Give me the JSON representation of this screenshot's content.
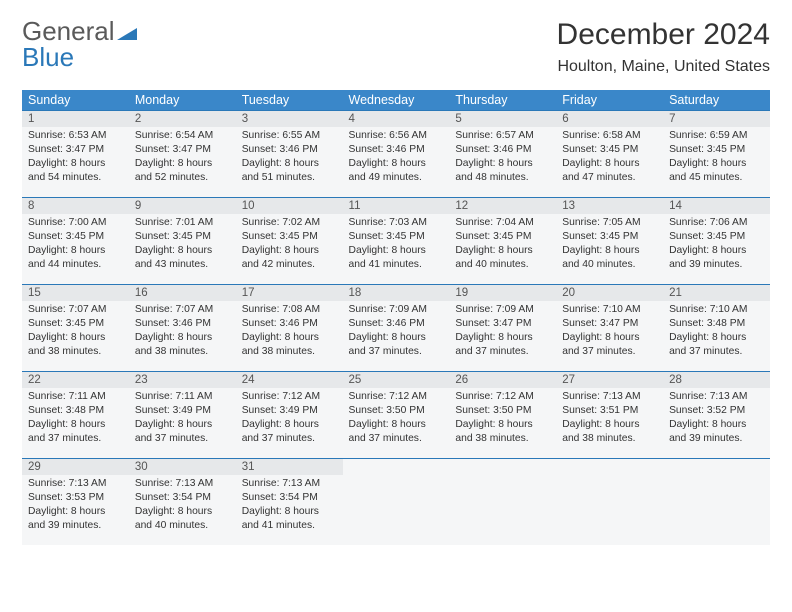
{
  "logo": {
    "general": "General",
    "blue": "Blue"
  },
  "title": "December 2024",
  "location": "Houlton, Maine, United States",
  "colors": {
    "header_bg": "#3a87c9",
    "header_fg": "#ffffff",
    "daynum_bg": "#e6e8ea",
    "body_bg": "#f5f6f7",
    "rule": "#2a78b8",
    "logo_blue": "#2a78b8"
  },
  "weekdays": [
    "Sunday",
    "Monday",
    "Tuesday",
    "Wednesday",
    "Thursday",
    "Friday",
    "Saturday"
  ],
  "weeks": [
    [
      {
        "n": "1",
        "sr": "Sunrise: 6:53 AM",
        "ss": "Sunset: 3:47 PM",
        "dl": "Daylight: 8 hours and 54 minutes."
      },
      {
        "n": "2",
        "sr": "Sunrise: 6:54 AM",
        "ss": "Sunset: 3:47 PM",
        "dl": "Daylight: 8 hours and 52 minutes."
      },
      {
        "n": "3",
        "sr": "Sunrise: 6:55 AM",
        "ss": "Sunset: 3:46 PM",
        "dl": "Daylight: 8 hours and 51 minutes."
      },
      {
        "n": "4",
        "sr": "Sunrise: 6:56 AM",
        "ss": "Sunset: 3:46 PM",
        "dl": "Daylight: 8 hours and 49 minutes."
      },
      {
        "n": "5",
        "sr": "Sunrise: 6:57 AM",
        "ss": "Sunset: 3:46 PM",
        "dl": "Daylight: 8 hours and 48 minutes."
      },
      {
        "n": "6",
        "sr": "Sunrise: 6:58 AM",
        "ss": "Sunset: 3:45 PM",
        "dl": "Daylight: 8 hours and 47 minutes."
      },
      {
        "n": "7",
        "sr": "Sunrise: 6:59 AM",
        "ss": "Sunset: 3:45 PM",
        "dl": "Daylight: 8 hours and 45 minutes."
      }
    ],
    [
      {
        "n": "8",
        "sr": "Sunrise: 7:00 AM",
        "ss": "Sunset: 3:45 PM",
        "dl": "Daylight: 8 hours and 44 minutes."
      },
      {
        "n": "9",
        "sr": "Sunrise: 7:01 AM",
        "ss": "Sunset: 3:45 PM",
        "dl": "Daylight: 8 hours and 43 minutes."
      },
      {
        "n": "10",
        "sr": "Sunrise: 7:02 AM",
        "ss": "Sunset: 3:45 PM",
        "dl": "Daylight: 8 hours and 42 minutes."
      },
      {
        "n": "11",
        "sr": "Sunrise: 7:03 AM",
        "ss": "Sunset: 3:45 PM",
        "dl": "Daylight: 8 hours and 41 minutes."
      },
      {
        "n": "12",
        "sr": "Sunrise: 7:04 AM",
        "ss": "Sunset: 3:45 PM",
        "dl": "Daylight: 8 hours and 40 minutes."
      },
      {
        "n": "13",
        "sr": "Sunrise: 7:05 AM",
        "ss": "Sunset: 3:45 PM",
        "dl": "Daylight: 8 hours and 40 minutes."
      },
      {
        "n": "14",
        "sr": "Sunrise: 7:06 AM",
        "ss": "Sunset: 3:45 PM",
        "dl": "Daylight: 8 hours and 39 minutes."
      }
    ],
    [
      {
        "n": "15",
        "sr": "Sunrise: 7:07 AM",
        "ss": "Sunset: 3:45 PM",
        "dl": "Daylight: 8 hours and 38 minutes."
      },
      {
        "n": "16",
        "sr": "Sunrise: 7:07 AM",
        "ss": "Sunset: 3:46 PM",
        "dl": "Daylight: 8 hours and 38 minutes."
      },
      {
        "n": "17",
        "sr": "Sunrise: 7:08 AM",
        "ss": "Sunset: 3:46 PM",
        "dl": "Daylight: 8 hours and 38 minutes."
      },
      {
        "n": "18",
        "sr": "Sunrise: 7:09 AM",
        "ss": "Sunset: 3:46 PM",
        "dl": "Daylight: 8 hours and 37 minutes."
      },
      {
        "n": "19",
        "sr": "Sunrise: 7:09 AM",
        "ss": "Sunset: 3:47 PM",
        "dl": "Daylight: 8 hours and 37 minutes."
      },
      {
        "n": "20",
        "sr": "Sunrise: 7:10 AM",
        "ss": "Sunset: 3:47 PM",
        "dl": "Daylight: 8 hours and 37 minutes."
      },
      {
        "n": "21",
        "sr": "Sunrise: 7:10 AM",
        "ss": "Sunset: 3:48 PM",
        "dl": "Daylight: 8 hours and 37 minutes."
      }
    ],
    [
      {
        "n": "22",
        "sr": "Sunrise: 7:11 AM",
        "ss": "Sunset: 3:48 PM",
        "dl": "Daylight: 8 hours and 37 minutes."
      },
      {
        "n": "23",
        "sr": "Sunrise: 7:11 AM",
        "ss": "Sunset: 3:49 PM",
        "dl": "Daylight: 8 hours and 37 minutes."
      },
      {
        "n": "24",
        "sr": "Sunrise: 7:12 AM",
        "ss": "Sunset: 3:49 PM",
        "dl": "Daylight: 8 hours and 37 minutes."
      },
      {
        "n": "25",
        "sr": "Sunrise: 7:12 AM",
        "ss": "Sunset: 3:50 PM",
        "dl": "Daylight: 8 hours and 37 minutes."
      },
      {
        "n": "26",
        "sr": "Sunrise: 7:12 AM",
        "ss": "Sunset: 3:50 PM",
        "dl": "Daylight: 8 hours and 38 minutes."
      },
      {
        "n": "27",
        "sr": "Sunrise: 7:13 AM",
        "ss": "Sunset: 3:51 PM",
        "dl": "Daylight: 8 hours and 38 minutes."
      },
      {
        "n": "28",
        "sr": "Sunrise: 7:13 AM",
        "ss": "Sunset: 3:52 PM",
        "dl": "Daylight: 8 hours and 39 minutes."
      }
    ],
    [
      {
        "n": "29",
        "sr": "Sunrise: 7:13 AM",
        "ss": "Sunset: 3:53 PM",
        "dl": "Daylight: 8 hours and 39 minutes."
      },
      {
        "n": "30",
        "sr": "Sunrise: 7:13 AM",
        "ss": "Sunset: 3:54 PM",
        "dl": "Daylight: 8 hours and 40 minutes."
      },
      {
        "n": "31",
        "sr": "Sunrise: 7:13 AM",
        "ss": "Sunset: 3:54 PM",
        "dl": "Daylight: 8 hours and 41 minutes."
      },
      {
        "empty": true
      },
      {
        "empty": true
      },
      {
        "empty": true
      },
      {
        "empty": true
      }
    ]
  ]
}
